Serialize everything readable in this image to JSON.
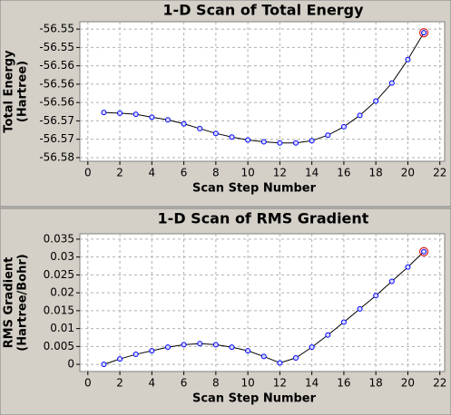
{
  "chart_data": [
    {
      "type": "line",
      "title": "1-D Scan of Total Energy",
      "xlabel": "Scan Step Number",
      "ylabel": [
        "Total Energy",
        "(Hartree)"
      ],
      "x": [
        1,
        2,
        3,
        4,
        5,
        6,
        7,
        8,
        9,
        10,
        11,
        12,
        13,
        14,
        15,
        16,
        17,
        18,
        19,
        20,
        21
      ],
      "series": [
        {
          "color": "#0000ff",
          "values": [
            -56.5677,
            -56.5679,
            -56.5682,
            -56.569,
            -56.5697,
            -56.5708,
            -56.5721,
            -56.5734,
            -56.5744,
            -56.5752,
            -56.5757,
            -56.576,
            -56.576,
            -56.5754,
            -56.5739,
            -56.5716,
            -56.5685,
            -56.5646,
            -56.5597,
            -56.5533,
            -56.546
          ]
        }
      ],
      "xlim": [
        -0.5,
        22.3
      ],
      "xticks": [
        0,
        2,
        4,
        6,
        8,
        10,
        12,
        14,
        16,
        18,
        20,
        22
      ],
      "ylim": [
        -56.581,
        -56.543
      ],
      "yticks": [
        {
          "value": -56.545,
          "label": "-56.55"
        },
        -56.55,
        {
          "value": -56.555,
          "label": "-56.56"
        },
        -56.56,
        {
          "value": -56.565,
          "label": "-56.56"
        },
        -56.57,
        {
          "value": -56.575,
          "label": "-56.57"
        },
        -56.58
      ],
      "grid": true
    },
    {
      "type": "line",
      "title": "1-D Scan of RMS Gradient",
      "xlabel": "Scan Step Number",
      "ylabel": [
        "RMS Gradient",
        "(Hartree/Bohr)"
      ],
      "x": [
        1,
        2,
        3,
        4,
        5,
        6,
        7,
        8,
        9,
        10,
        11,
        12,
        13,
        14,
        15,
        16,
        17,
        18,
        19,
        20,
        21
      ],
      "series": [
        {
          "color": "#0000ff",
          "values": [
            0,
            0.0015,
            0.0028,
            0.0038,
            0.0048,
            0.0055,
            0.0058,
            0.0055,
            0.0048,
            0.0038,
            0.0022,
            0.0004,
            0.0018,
            0.0048,
            0.0082,
            0.0118,
            0.0155,
            0.0192,
            0.0232,
            0.0272,
            0.0315
          ]
        }
      ],
      "xlim": [
        -0.5,
        22.3
      ],
      "xticks": [
        0,
        2,
        4,
        6,
        8,
        10,
        12,
        14,
        16,
        18,
        20,
        22
      ],
      "ylim": [
        -0.002,
        0.0365
      ],
      "yticks": [
        0,
        0.005,
        0.01,
        0.015,
        0.02,
        0.025,
        0.03,
        0.035
      ],
      "grid": true
    }
  ]
}
